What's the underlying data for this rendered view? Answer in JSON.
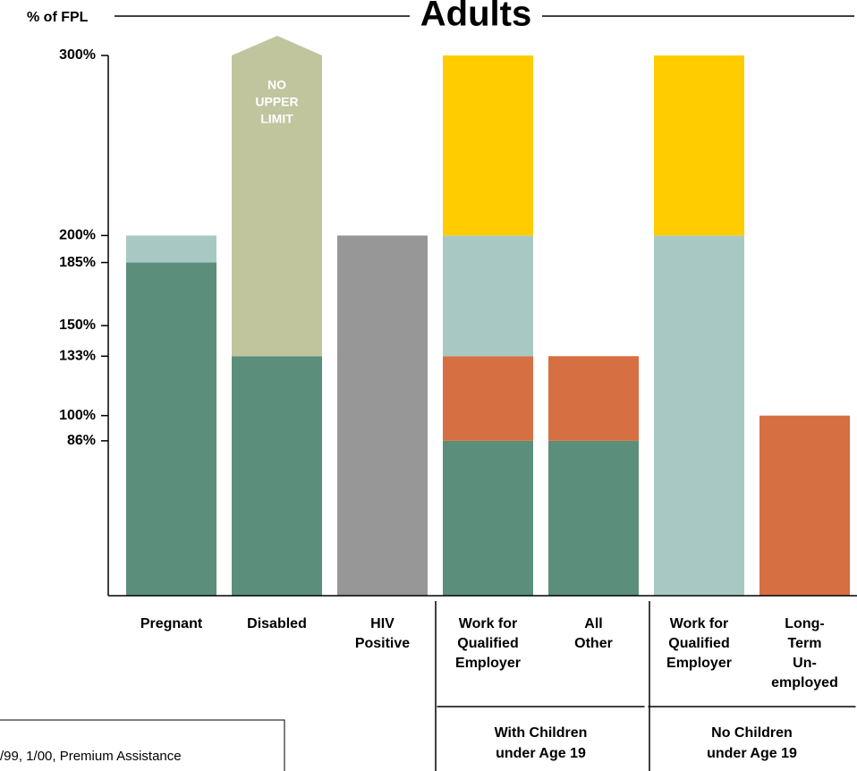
{
  "chart_data": {
    "type": "bar",
    "title": "Adults",
    "y_label": "% of FPL",
    "categories": [
      [
        "Pregnant"
      ],
      [
        "Disabled"
      ],
      [
        "HIV",
        "Positive"
      ],
      [
        "Work for",
        "Qualified",
        "Employer"
      ],
      [
        "All",
        "Other"
      ],
      [
        "Work for",
        "Qualified",
        "Employer"
      ],
      [
        "Long-",
        "Term",
        "Un-",
        "employed"
      ]
    ],
    "groups": [
      {
        "label": [
          "With Children",
          "under Age 19"
        ],
        "categories": [
          3,
          4
        ]
      },
      {
        "label": [
          "No Children",
          "under Age 19"
        ],
        "categories": [
          5,
          6
        ]
      }
    ],
    "stacked": true,
    "series": [
      {
        "color": "#5b8f7b",
        "values": [
          185,
          133,
          null,
          86,
          86,
          null,
          null
        ]
      },
      {
        "color": "#c0c59e",
        "values": [
          null,
          167,
          null,
          null,
          null,
          null,
          null
        ]
      },
      {
        "color": "#979797",
        "values": [
          null,
          null,
          200,
          null,
          null,
          null,
          null
        ]
      },
      {
        "color": "#d66f42",
        "values": [
          null,
          null,
          null,
          47,
          47,
          null,
          100
        ]
      },
      {
        "color": "#a8c9c3",
        "values": [
          15,
          null,
          null,
          67,
          null,
          200,
          null
        ]
      },
      {
        "color": "#ffcc00",
        "values": [
          null,
          null,
          null,
          100,
          null,
          100,
          null
        ]
      }
    ],
    "annotation": [
      "NO",
      "UPPER",
      "LIMIT"
    ],
    "ylim": [
      0,
      300
    ],
    "yticks": [
      {
        "value": 86,
        "label": "86%"
      },
      {
        "value": 100,
        "label": "100%"
      },
      {
        "value": 133,
        "label": "133%"
      },
      {
        "value": 150,
        "label": "150%"
      },
      {
        "value": 185,
        "label": "185%"
      },
      {
        "value": 200,
        "label": "200%"
      },
      {
        "value": 300,
        "label": "300%"
      }
    ],
    "footnote": "/99, 1/00, Premium Assistance"
  }
}
